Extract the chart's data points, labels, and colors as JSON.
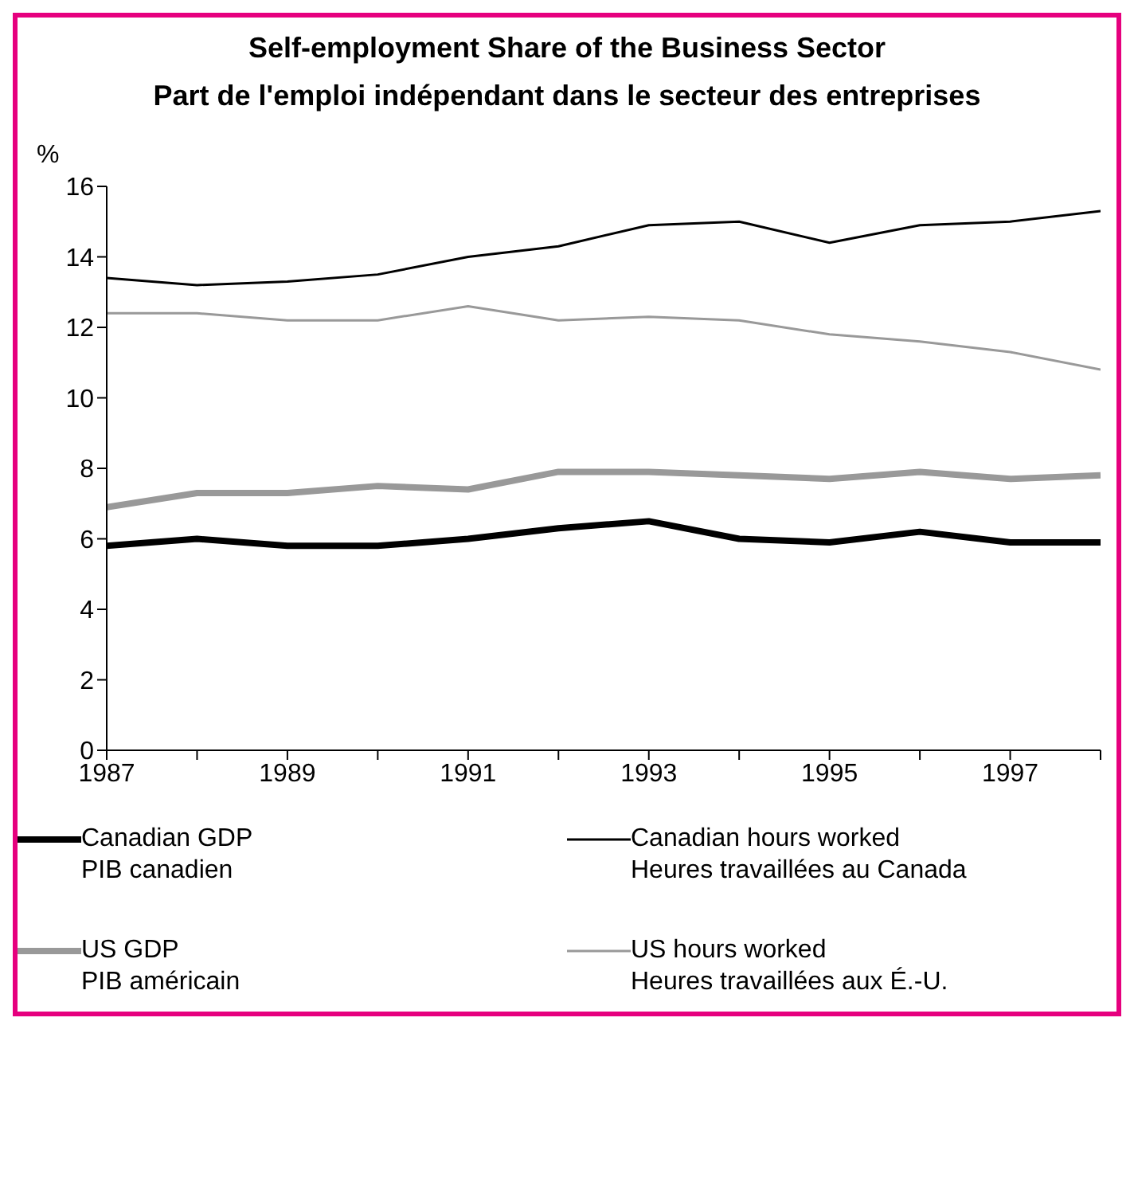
{
  "chart_data": {
    "type": "line",
    "title": "Self-employment Share of the Business Sector",
    "subtitle": "Part de l'emploi indépendant dans le secteur des entreprises",
    "ylabel": "%",
    "x": [
      1987,
      1988,
      1989,
      1990,
      1991,
      1992,
      1993,
      1994,
      1995,
      1996,
      1997,
      1998
    ],
    "series": [
      {
        "name": "Canadian GDP\nPIB canadien",
        "color": "#000000",
        "values": [
          5.8,
          6.0,
          5.8,
          5.8,
          6.0,
          6.3,
          6.5,
          6.0,
          5.9,
          6.2,
          5.9,
          5.9
        ]
      },
      {
        "name": "Canadian hours worked\nHeures travaillées au Canada",
        "color": "#000000",
        "values": [
          13.4,
          13.2,
          13.3,
          13.5,
          14.0,
          14.3,
          14.9,
          15.0,
          14.4,
          14.9,
          15.0,
          15.3
        ]
      },
      {
        "name": "US GDP\nPIB américain",
        "color": "#999999",
        "values": [
          6.9,
          7.3,
          7.3,
          7.5,
          7.4,
          7.9,
          7.9,
          7.8,
          7.7,
          7.9,
          7.7,
          7.8
        ]
      },
      {
        "name": "US hours worked\nHeures travaillées aux É.-U.",
        "color": "#999999",
        "values": [
          12.4,
          12.4,
          12.2,
          12.2,
          12.6,
          12.2,
          12.3,
          12.2,
          11.8,
          11.6,
          11.3,
          10.8
        ]
      }
    ],
    "xlim": [
      1987,
      1998
    ],
    "xticks": [
      1987,
      {
        "value": 1988,
        "label": null
      },
      1989,
      {
        "value": 1990,
        "label": null
      },
      1991,
      {
        "value": 1992,
        "label": null
      },
      1993,
      {
        "value": 1994,
        "label": null
      },
      1995,
      {
        "value": 1996,
        "label": null
      },
      1997,
      {
        "value": 1998,
        "label": null
      }
    ],
    "ylim": [
      0,
      16
    ],
    "yticks": [
      0,
      2,
      4,
      6,
      8,
      10,
      12,
      14,
      16
    ],
    "grid": false,
    "legend": "bottom",
    "marker": "none",
    "line_style": "solid"
  }
}
